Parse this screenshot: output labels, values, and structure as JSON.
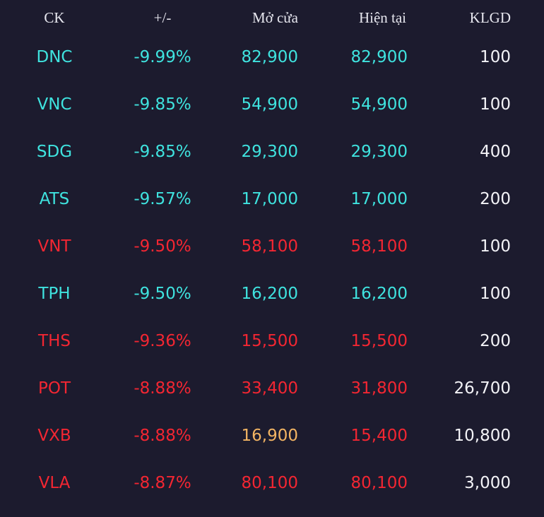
{
  "colors": {
    "background": "#1c1b2e",
    "floor": "#3fe3df",
    "down": "#f32632",
    "reference": "#f2b463",
    "neutral": "#f3f3f7"
  },
  "header": {
    "ck": "CK",
    "change": "+/-",
    "open": "Mở cửa",
    "current": "Hiện tại",
    "volume": "KLGD"
  },
  "rows": [
    {
      "ck": "DNC",
      "change": "-9.99%",
      "open": "82,900",
      "current": "82,900",
      "volume": "100",
      "ck_color": "cyan",
      "change_color": "cyan",
      "open_color": "cyan",
      "current_color": "cyan"
    },
    {
      "ck": "VNC",
      "change": "-9.85%",
      "open": "54,900",
      "current": "54,900",
      "volume": "100",
      "ck_color": "cyan",
      "change_color": "cyan",
      "open_color": "cyan",
      "current_color": "cyan"
    },
    {
      "ck": "SDG",
      "change": "-9.85%",
      "open": "29,300",
      "current": "29,300",
      "volume": "400",
      "ck_color": "cyan",
      "change_color": "cyan",
      "open_color": "cyan",
      "current_color": "cyan"
    },
    {
      "ck": "ATS",
      "change": "-9.57%",
      "open": "17,000",
      "current": "17,000",
      "volume": "200",
      "ck_color": "cyan",
      "change_color": "cyan",
      "open_color": "cyan",
      "current_color": "cyan"
    },
    {
      "ck": "VNT",
      "change": "-9.50%",
      "open": "58,100",
      "current": "58,100",
      "volume": "100",
      "ck_color": "red",
      "change_color": "red",
      "open_color": "red",
      "current_color": "red"
    },
    {
      "ck": "TPH",
      "change": "-9.50%",
      "open": "16,200",
      "current": "16,200",
      "volume": "100",
      "ck_color": "cyan",
      "change_color": "cyan",
      "open_color": "cyan",
      "current_color": "cyan"
    },
    {
      "ck": "THS",
      "change": "-9.36%",
      "open": "15,500",
      "current": "15,500",
      "volume": "200",
      "ck_color": "red",
      "change_color": "red",
      "open_color": "red",
      "current_color": "red"
    },
    {
      "ck": "POT",
      "change": "-8.88%",
      "open": "33,400",
      "current": "31,800",
      "volume": "26,700",
      "ck_color": "red",
      "change_color": "red",
      "open_color": "red",
      "current_color": "red"
    },
    {
      "ck": "VXB",
      "change": "-8.88%",
      "open": "16,900",
      "current": "15,400",
      "volume": "10,800",
      "ck_color": "red",
      "change_color": "red",
      "open_color": "yellow",
      "current_color": "red"
    },
    {
      "ck": "VLA",
      "change": "-8.87%",
      "open": "80,100",
      "current": "80,100",
      "volume": "3,000",
      "ck_color": "red",
      "change_color": "red",
      "open_color": "red",
      "current_color": "red"
    }
  ]
}
